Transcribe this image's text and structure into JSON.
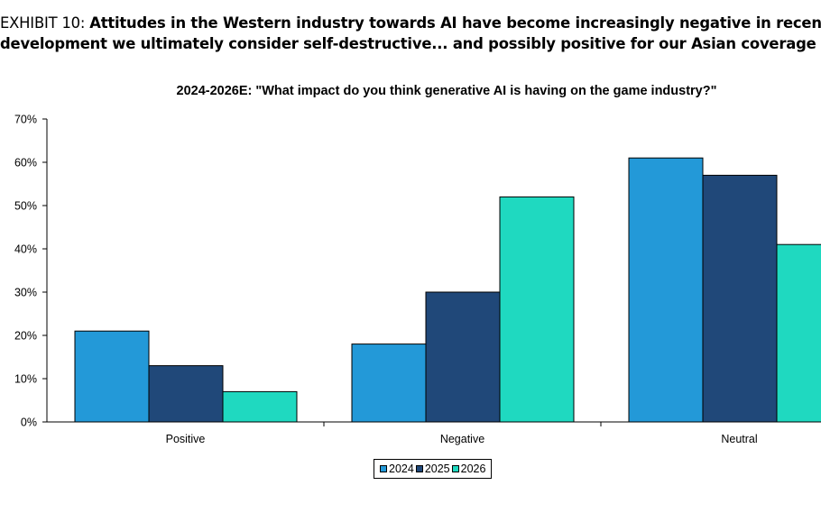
{
  "header": {
    "exhibit_label": "EXHIBIT 10:",
    "title_line1": "Attitudes in the Western industry towards AI have become increasingly negative in recent yea",
    "title_line2": "development we ultimately consider self-destructive... and possibly positive for our Asian coverage"
  },
  "chart_data": {
    "type": "bar",
    "title": "2024-2026E: \"What impact do you think generative AI is having on the game industry?\"",
    "categories": [
      "Positive",
      "Negative",
      "Neutral"
    ],
    "series": [
      {
        "name": "2024",
        "color": "#2399D8",
        "values": [
          21,
          18,
          61
        ]
      },
      {
        "name": "2025",
        "color": "#204879",
        "values": [
          13,
          30,
          57
        ]
      },
      {
        "name": "2026",
        "color": "#1FD9C0",
        "values": [
          7,
          52,
          41
        ]
      }
    ],
    "yticks": [
      "0%",
      "10%",
      "20%",
      "30%",
      "40%",
      "50%",
      "60%",
      "70%"
    ],
    "ylim": [
      0,
      70
    ],
    "xlabel": "",
    "ylabel": "",
    "grid": false,
    "legend": "bottom-center"
  }
}
